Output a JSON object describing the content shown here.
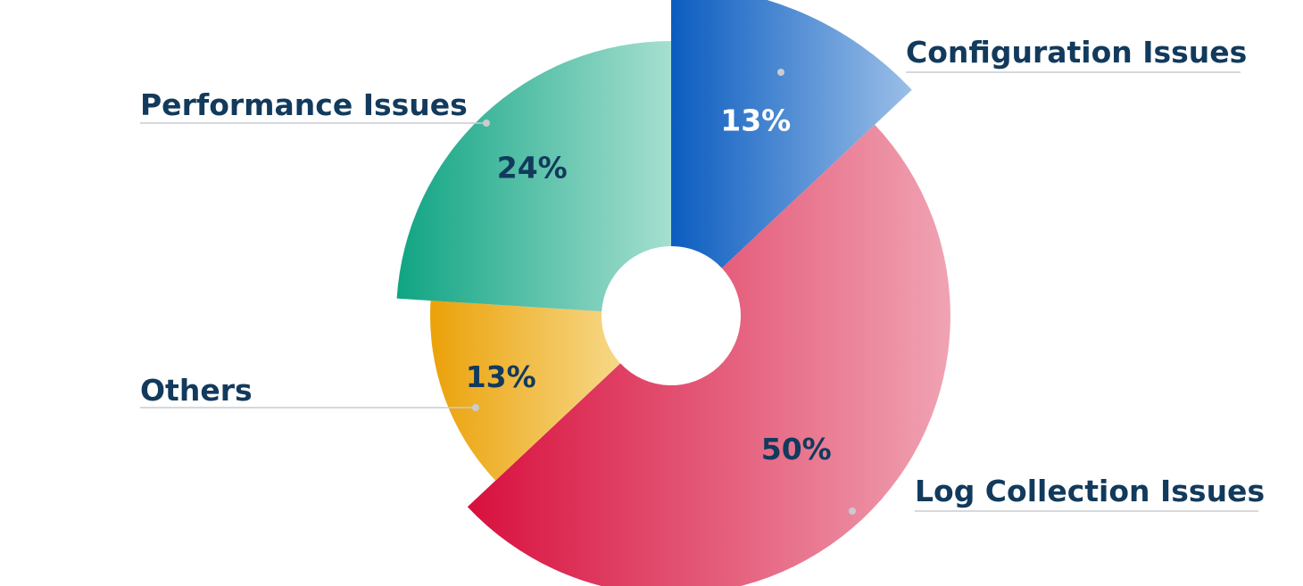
{
  "chart_data": {
    "type": "pie",
    "variant": "variable-radius donut",
    "title": "",
    "categories": [
      "Configuration Issues",
      "Log Collection Issues",
      "Others",
      "Performance Issues"
    ],
    "values": [
      13,
      50,
      13,
      24
    ],
    "value_labels": [
      "13%",
      "50%",
      "13%",
      "24%"
    ],
    "colors": {
      "Configuration Issues": [
        "#0b5cc0",
        "#9cc0e8"
      ],
      "Log Collection Issues": [
        "#d8103e",
        "#f0a3b3"
      ],
      "Others": [
        "#eba20a",
        "#f7d98a"
      ],
      "Performance Issues": [
        "#0fa483",
        "#a6dfd0"
      ]
    },
    "value_label_colors": {
      "Configuration Issues": "#ffffff",
      "Log Collection Issues": "#123a5c",
      "Others": "#123a5c",
      "Performance Issues": "#123a5c"
    }
  }
}
